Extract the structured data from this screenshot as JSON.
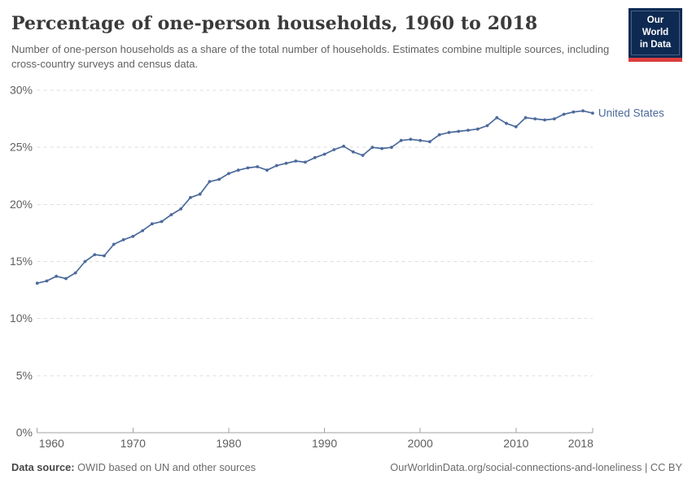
{
  "header": {
    "title": "Percentage of one-person households, 1960 to 2018",
    "subtitle": "Number of one-person households as a share of the total number of households. Estimates combine multiple sources, including cross-country surveys and census data.",
    "logo": {
      "line1": "Our World",
      "line2": "in Data",
      "bg_color": "#0e2a52",
      "accent_color": "#dc3e3e"
    }
  },
  "chart_data": {
    "type": "line",
    "title": "Percentage of one-person households, 1960 to 2018",
    "xlabel": "",
    "ylabel": "",
    "xlim": [
      1960,
      2018
    ],
    "ylim": [
      0,
      30
    ],
    "grid": "dashed-horizontal",
    "legend_position": "right-of-line-end",
    "x_ticks": [
      1960,
      1970,
      1980,
      1990,
      2000,
      2010,
      2018
    ],
    "y_ticks": [
      0,
      5,
      10,
      15,
      20,
      25,
      30
    ],
    "y_tick_suffix": "%",
    "series": [
      {
        "name": "United States",
        "color": "#4C6A9C",
        "x": [
          1960,
          1961,
          1962,
          1963,
          1964,
          1965,
          1966,
          1967,
          1968,
          1969,
          1970,
          1971,
          1972,
          1973,
          1974,
          1975,
          1976,
          1977,
          1978,
          1979,
          1980,
          1981,
          1982,
          1983,
          1984,
          1985,
          1986,
          1987,
          1988,
          1989,
          1990,
          1991,
          1992,
          1993,
          1994,
          1995,
          1996,
          1997,
          1998,
          1999,
          2000,
          2001,
          2002,
          2003,
          2004,
          2005,
          2006,
          2007,
          2008,
          2009,
          2010,
          2011,
          2012,
          2013,
          2014,
          2015,
          2016,
          2017,
          2018
        ],
        "values": [
          13.1,
          13.3,
          13.7,
          13.5,
          14.0,
          15.0,
          15.6,
          15.5,
          16.5,
          16.9,
          17.2,
          17.7,
          18.3,
          18.5,
          19.1,
          19.6,
          20.6,
          20.9,
          22.0,
          22.2,
          22.7,
          23.0,
          23.2,
          23.3,
          23.0,
          23.4,
          23.6,
          23.8,
          23.7,
          24.1,
          24.4,
          24.8,
          25.1,
          24.6,
          24.3,
          25.0,
          24.9,
          25.0,
          25.6,
          25.7,
          25.6,
          25.5,
          26.1,
          26.3,
          26.4,
          26.5,
          26.6,
          26.9,
          27.6,
          27.1,
          26.8,
          27.6,
          27.5,
          27.4,
          27.5,
          27.9,
          28.1,
          28.2,
          28.0
        ]
      }
    ]
  },
  "footer": {
    "source_label": "Data source:",
    "source_text": " OWID based on UN and other sources",
    "link_text": "OurWorldinData.org/social-connections-and-loneliness | CC BY"
  }
}
